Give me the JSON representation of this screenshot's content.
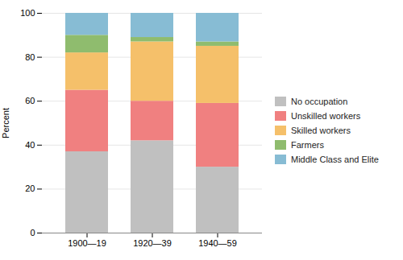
{
  "chart_data": {
    "type": "bar",
    "stacked": true,
    "categories": [
      "1900—19",
      "1920—39",
      "1940—59"
    ],
    "series": [
      {
        "name": "No occupation",
        "color": "#c0c0c0",
        "values": [
          37,
          42,
          30
        ]
      },
      {
        "name": "Unskilled workers",
        "color": "#f08080",
        "values": [
          28,
          18,
          29
        ]
      },
      {
        "name": "Skilled workers",
        "color": "#f5c06a",
        "values": [
          17,
          27,
          26
        ]
      },
      {
        "name": "Farmers",
        "color": "#8fbc6e",
        "values": [
          8,
          2,
          2
        ]
      },
      {
        "name": "Middle Class and Elite",
        "color": "#87bcd4",
        "values": [
          10,
          11,
          13
        ]
      }
    ],
    "ylabel": "Percent",
    "ylim": [
      0,
      100
    ],
    "yticks": [
      0,
      20,
      40,
      60,
      80,
      100
    ],
    "grid": true,
    "legend": "right"
  }
}
